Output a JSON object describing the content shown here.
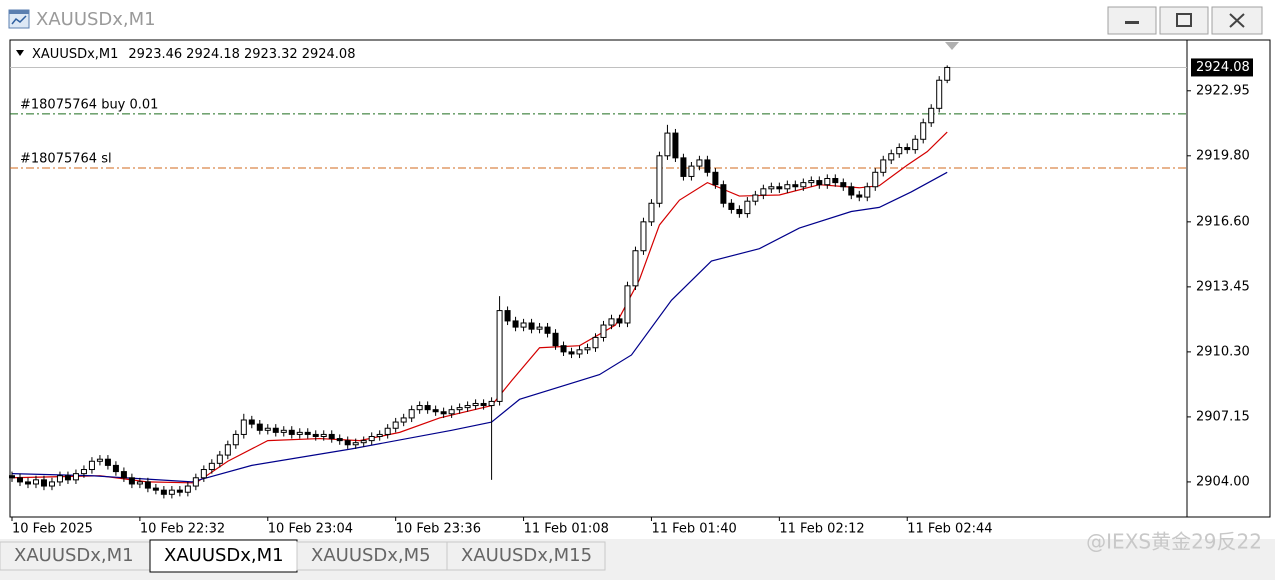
{
  "window": {
    "title": "XAUUSDx,M1"
  },
  "chart_data": {
    "type": "candlestick",
    "title": "XAUUSDx,M1",
    "x": [
      0,
      2,
      4,
      6,
      8,
      10,
      12,
      14,
      16,
      18,
      20,
      22,
      24,
      26,
      28,
      30,
      32,
      34,
      36,
      38,
      40,
      42,
      44,
      46,
      48,
      50,
      52,
      54,
      56,
      58,
      60,
      62,
      64,
      66,
      68,
      70,
      72,
      74,
      76,
      78,
      80,
      82,
      84,
      86,
      88,
      90,
      92,
      94,
      96,
      98,
      100,
      102,
      104,
      106,
      108,
      110,
      112,
      114,
      116,
      118,
      120,
      122,
      124,
      126,
      128,
      130,
      132,
      134,
      136,
      138,
      140,
      142,
      144,
      146,
      148,
      150,
      152,
      154,
      156,
      158,
      160,
      162,
      164,
      166,
      168,
      170,
      172,
      174,
      176,
      178,
      180,
      182,
      184,
      186,
      188,
      190,
      192,
      194,
      196,
      198,
      200,
      202,
      204,
      206,
      208,
      210,
      212,
      214,
      216,
      218,
      220,
      222,
      224,
      226,
      228,
      230,
      232,
      234
    ],
    "open": [
      2904.3,
      2904.2,
      2904.0,
      2903.9,
      2904.1,
      2903.8,
      2904.0,
      2904.3,
      2904.1,
      2904.4,
      2904.6,
      2905.0,
      2905.1,
      2904.8,
      2904.5,
      2904.2,
      2903.9,
      2904.0,
      2903.7,
      2903.6,
      2903.4,
      2903.6,
      2903.5,
      2903.8,
      2904.2,
      2904.6,
      2904.9,
      2905.3,
      2905.8,
      2906.3,
      2907.0,
      2906.8,
      2906.5,
      2906.6,
      2906.4,
      2906.5,
      2906.3,
      2906.4,
      2906.3,
      2906.2,
      2906.3,
      2906.1,
      2906.0,
      2905.8,
      2905.9,
      2906.0,
      2906.2,
      2906.3,
      2906.6,
      2906.9,
      2907.1,
      2907.5,
      2907.7,
      2907.5,
      2907.4,
      2907.3,
      2907.5,
      2907.6,
      2907.7,
      2907.8,
      2907.7,
      2907.9,
      2912.3,
      2911.8,
      2911.5,
      2911.7,
      2911.4,
      2911.5,
      2911.2,
      2910.6,
      2910.3,
      2910.2,
      2910.4,
      2910.5,
      2911.0,
      2911.6,
      2911.9,
      2911.7,
      2913.5,
      2915.2,
      2916.6,
      2917.5,
      2919.8,
      2920.9,
      2919.7,
      2918.8,
      2919.3,
      2919.6,
      2919.0,
      2918.4,
      2917.5,
      2917.2,
      2917.0,
      2917.6,
      2917.9,
      2918.2,
      2918.3,
      2918.2,
      2918.4,
      2918.3,
      2918.5,
      2918.6,
      2918.4,
      2918.7,
      2918.5,
      2918.3,
      2917.9,
      2917.8,
      2918.3,
      2919.0,
      2919.6,
      2919.9,
      2920.2,
      2920.1,
      2920.6,
      2921.4,
      2922.1,
      2923.46
    ],
    "high": [
      2904.5,
      2904.4,
      2904.2,
      2904.3,
      2904.3,
      2904.2,
      2904.5,
      2904.5,
      2904.6,
      2904.8,
      2905.2,
      2905.3,
      2905.3,
      2905.0,
      2904.7,
      2904.4,
      2904.2,
      2904.2,
      2903.9,
      2903.8,
      2903.8,
      2903.8,
      2904.0,
      2904.4,
      2904.8,
      2905.1,
      2905.5,
      2906.0,
      2906.5,
      2907.3,
      2907.2,
      2907.0,
      2906.8,
      2906.8,
      2906.7,
      2906.7,
      2906.6,
      2906.6,
      2906.5,
      2906.5,
      2906.5,
      2906.3,
      2906.2,
      2906.1,
      2906.2,
      2906.4,
      2906.5,
      2906.8,
      2907.1,
      2907.3,
      2907.7,
      2907.9,
      2907.9,
      2907.7,
      2907.6,
      2907.7,
      2907.8,
      2907.9,
      2908.0,
      2908.0,
      2908.1,
      2913.0,
      2912.5,
      2912.0,
      2911.9,
      2911.9,
      2911.7,
      2911.7,
      2911.4,
      2910.8,
      2910.5,
      2910.6,
      2910.7,
      2911.2,
      2911.8,
      2912.1,
      2912.1,
      2913.7,
      2915.4,
      2916.8,
      2917.7,
      2920.0,
      2921.3,
      2921.1,
      2919.9,
      2919.5,
      2919.8,
      2919.8,
      2919.2,
      2918.6,
      2917.7,
      2917.4,
      2917.8,
      2918.1,
      2918.4,
      2918.5,
      2918.5,
      2918.6,
      2918.6,
      2918.7,
      2918.8,
      2918.8,
      2918.9,
      2918.9,
      2918.7,
      2918.5,
      2918.1,
      2918.5,
      2919.2,
      2919.8,
      2920.1,
      2920.4,
      2920.4,
      2920.8,
      2921.6,
      2922.3,
      2923.66,
      2924.18
    ],
    "low": [
      2904.0,
      2903.8,
      2903.7,
      2903.7,
      2903.6,
      2903.6,
      2903.8,
      2903.9,
      2903.9,
      2904.2,
      2904.4,
      2904.8,
      2904.6,
      2904.3,
      2904.0,
      2903.7,
      2903.7,
      2903.5,
      2903.4,
      2903.2,
      2903.2,
      2903.3,
      2903.3,
      2903.6,
      2904.0,
      2904.4,
      2904.7,
      2905.1,
      2905.6,
      2906.1,
      2906.6,
      2906.3,
      2906.3,
      2906.2,
      2906.2,
      2906.1,
      2906.1,
      2906.1,
      2906.0,
      2906.0,
      2905.9,
      2905.8,
      2905.6,
      2905.6,
      2905.7,
      2905.8,
      2906.0,
      2906.1,
      2906.4,
      2906.7,
      2906.9,
      2907.3,
      2907.3,
      2907.2,
      2907.1,
      2907.1,
      2907.3,
      2907.4,
      2907.5,
      2907.5,
      2904.1,
      2907.7,
      2911.6,
      2911.3,
      2911.3,
      2911.2,
      2911.2,
      2911.0,
      2910.4,
      2910.1,
      2910.0,
      2910.0,
      2910.2,
      2910.3,
      2910.8,
      2911.4,
      2911.5,
      2911.5,
      2913.3,
      2915.0,
      2916.4,
      2917.3,
      2919.6,
      2919.5,
      2918.6,
      2918.6,
      2919.1,
      2918.8,
      2918.2,
      2917.3,
      2917.0,
      2916.8,
      2916.8,
      2917.4,
      2917.7,
      2918.0,
      2918.0,
      2918.0,
      2918.1,
      2918.1,
      2918.3,
      2918.2,
      2918.2,
      2918.3,
      2918.1,
      2917.7,
      2917.6,
      2917.6,
      2918.1,
      2918.8,
      2919.4,
      2919.7,
      2919.9,
      2919.9,
      2920.4,
      2921.2,
      2921.9,
      2923.32
    ],
    "close": [
      2904.2,
      2904.0,
      2903.9,
      2904.1,
      2903.8,
      2904.0,
      2904.3,
      2904.1,
      2904.4,
      2904.6,
      2905.0,
      2905.1,
      2904.8,
      2904.5,
      2904.2,
      2903.9,
      2904.0,
      2903.7,
      2903.6,
      2903.4,
      2903.6,
      2903.5,
      2903.8,
      2904.2,
      2904.6,
      2904.9,
      2905.3,
      2905.8,
      2906.3,
      2907.0,
      2906.8,
      2906.5,
      2906.6,
      2906.4,
      2906.5,
      2906.3,
      2906.4,
      2906.3,
      2906.2,
      2906.3,
      2906.1,
      2906.0,
      2905.8,
      2905.9,
      2906.0,
      2906.2,
      2906.3,
      2906.6,
      2906.9,
      2907.1,
      2907.5,
      2907.7,
      2907.5,
      2907.4,
      2907.3,
      2907.5,
      2907.6,
      2907.7,
      2907.8,
      2907.7,
      2907.9,
      2912.3,
      2911.8,
      2911.5,
      2911.7,
      2911.4,
      2911.5,
      2911.2,
      2910.6,
      2910.3,
      2910.2,
      2910.4,
      2910.5,
      2911.0,
      2911.6,
      2911.9,
      2911.7,
      2913.5,
      2915.2,
      2916.6,
      2917.5,
      2919.8,
      2920.9,
      2919.7,
      2918.8,
      2919.3,
      2919.6,
      2919.0,
      2918.4,
      2917.5,
      2917.2,
      2917.0,
      2917.6,
      2917.9,
      2918.2,
      2918.3,
      2918.2,
      2918.4,
      2918.3,
      2918.5,
      2918.6,
      2918.4,
      2918.7,
      2918.5,
      2918.3,
      2917.9,
      2917.8,
      2918.3,
      2919.0,
      2919.6,
      2919.9,
      2920.2,
      2920.1,
      2920.6,
      2921.4,
      2922.1,
      2923.46,
      2924.08
    ],
    "up_color": "#ffffff",
    "down_color": "#000000",
    "wick_color": "#000000",
    "moving_averages": [
      {
        "color": "#d40000",
        "x": [
          0,
          22,
          34,
          46,
          54,
          64,
          77,
          87,
          97,
          107,
          120,
          125,
          132,
          142,
          151,
          157,
          162,
          167,
          174,
          182,
          192,
          202,
          212,
          217,
          224,
          229,
          234
        ],
        "values": [
          2904.2,
          2904.3,
          2904.0,
          2903.95,
          2905.0,
          2906.0,
          2906.1,
          2906.0,
          2906.4,
          2907.1,
          2907.7,
          2908.9,
          2910.5,
          2910.6,
          2911.6,
          2913.8,
          2916.45,
          2917.65,
          2918.5,
          2917.85,
          2917.9,
          2918.4,
          2918.25,
          2918.35,
          2919.35,
          2920.0,
          2920.95
        ]
      },
      {
        "color": "#00008b",
        "x": [
          0,
          20,
          45,
          60,
          85,
          110,
          120,
          127,
          147,
          155,
          165,
          175,
          187,
          197,
          210,
          217,
          225,
          234
        ],
        "values": [
          2904.4,
          2904.3,
          2904.0,
          2904.8,
          2905.6,
          2906.5,
          2906.9,
          2908.0,
          2909.2,
          2910.15,
          2912.8,
          2914.7,
          2915.3,
          2916.3,
          2917.1,
          2917.3,
          2918.05,
          2919.0
        ]
      }
    ],
    "orders": [
      {
        "label": "#18075764 buy 0.01",
        "price": 2921.83,
        "color": "#1f6e1f"
      },
      {
        "label": "#18075764 sl",
        "price": 2919.21,
        "color": "#d2691e"
      }
    ],
    "bid_line_color": "#c0c0c0",
    "xlim": [
      -0.5,
      294
    ],
    "ylim": [
      2902.3,
      2925.41
    ],
    "yticks": [
      {
        "value": 2904,
        "label": "2904.00"
      },
      {
        "value": 2907.15,
        "label": "2907.15"
      },
      {
        "value": 2910.3,
        "label": "2910.30"
      },
      {
        "value": 2913.45,
        "label": "2913.45"
      },
      {
        "value": 2916.6,
        "label": "2916.60"
      },
      {
        "value": 2919.8,
        "label": "2919.80"
      },
      {
        "value": 2922.95,
        "label": "2922.95"
      }
    ],
    "xticks": [
      {
        "value": 0,
        "label": "10 Feb 2025"
      },
      {
        "value": 32,
        "label": "10 Feb 22:32"
      },
      {
        "value": 64,
        "label": "10 Feb 23:04"
      },
      {
        "value": 96,
        "label": "10 Feb 23:36"
      },
      {
        "value": 128,
        "label": "11 Feb 01:08"
      },
      {
        "value": 160,
        "label": "11 Feb 01:40"
      },
      {
        "value": 192,
        "label": "11 Feb 02:12"
      },
      {
        "value": 224,
        "label": "11 Feb 02:44"
      }
    ]
  },
  "tabs": [
    "XAUUSDx,M1",
    "XAUUSDx,M1",
    "XAUUSDx,M5",
    "XAUUSDx,M15"
  ],
  "active_tab": 1,
  "watermark": "@IEXS黄金29反22"
}
